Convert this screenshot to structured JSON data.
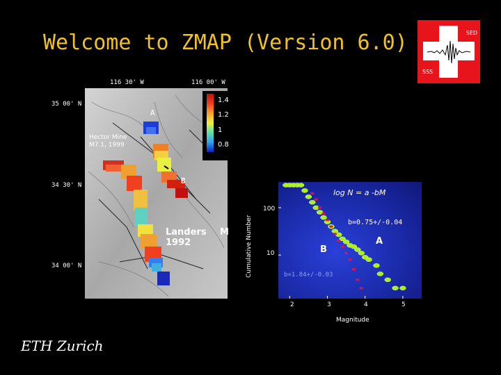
{
  "slide": {
    "title": "Welcome to ZMAP (Version 6.0)",
    "footer": "ETH Zurich"
  },
  "logo": {
    "top_text": "SED",
    "bottom_text": "SSS",
    "icon": "swiss-cross-seismogram-icon"
  },
  "map": {
    "lon_labels": [
      "116 30' W",
      "116 00' W"
    ],
    "lat_labels": [
      "35 00' N",
      "34 30' N",
      "34 00' N"
    ],
    "label_a": "A",
    "label_b": "B",
    "hector_line1": "Hector Mine",
    "hector_line2": "M7.1, 1999",
    "landers_line1": "Landers",
    "landers_line2": "1992",
    "m_label": "M",
    "colorbar_ticks": [
      "1.4",
      "1.2",
      "1",
      "0.8"
    ]
  },
  "plot": {
    "equation": "log N = a -bM",
    "b_value_a": "b=0.75+/-0.04",
    "b_value_b": "b=1.84+/-0.03",
    "label_a": "A",
    "label_b": "B",
    "ylabel": "Cumulative Number",
    "xlabel": "Magnitude",
    "yticks": [
      "100",
      "10"
    ],
    "xticks": [
      "2",
      "3",
      "4",
      "5"
    ]
  },
  "chart_data": {
    "type": "scatter",
    "title": "log N = a -bM",
    "xlabel": "Magnitude",
    "ylabel": "Cumulative Number",
    "xlim": [
      1.7,
      5.5
    ],
    "ylim": [
      1.2,
      350
    ],
    "yscale": "log",
    "series": [
      {
        "name": "A",
        "color": "#a8f020",
        "x": [
          1.9,
          2.0,
          2.1,
          2.2,
          2.3,
          2.4,
          2.5,
          2.6,
          2.7,
          2.8,
          2.9,
          3.0,
          3.1,
          3.2,
          3.3,
          3.4,
          3.5,
          3.6,
          3.7,
          3.8,
          3.9,
          4.0,
          4.1,
          4.3,
          4.4,
          4.6,
          4.8,
          5.0
        ],
        "y": [
          300,
          300,
          300,
          300,
          300,
          230,
          170,
          130,
          100,
          80,
          62,
          50,
          40,
          32,
          27,
          22,
          19,
          16,
          15,
          13,
          11,
          9,
          8,
          6,
          4,
          3,
          2,
          2
        ]
      },
      {
        "name": "B",
        "color": "#e01050",
        "x": [
          2.6,
          2.7,
          2.8,
          2.9,
          3.0,
          3.1,
          3.2,
          3.3,
          3.4,
          3.5,
          3.6,
          3.7,
          3.8,
          3.9
        ],
        "y": [
          200,
          150,
          100,
          75,
          55,
          40,
          28,
          20,
          15,
          11,
          8,
          5,
          3,
          2
        ]
      }
    ]
  }
}
